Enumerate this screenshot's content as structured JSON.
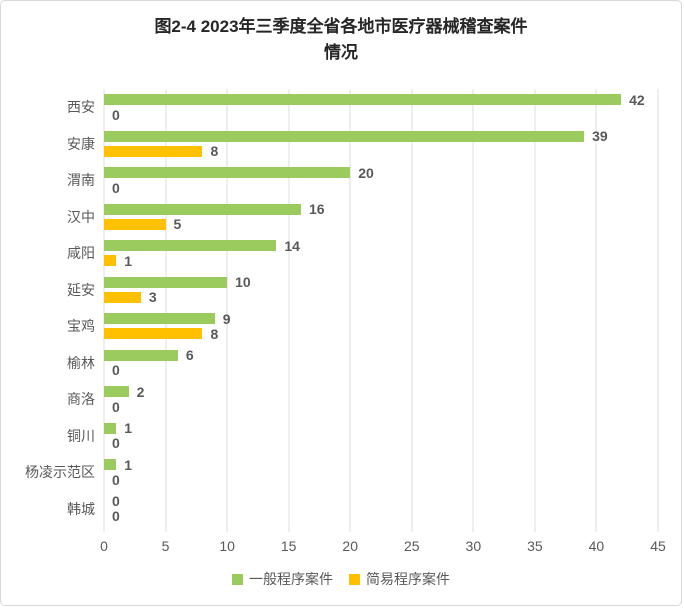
{
  "title_lines": [
    "图2-4 2023年三季度全省各地市医疗器械稽查案件",
    "情况"
  ],
  "chart_data": {
    "type": "bar",
    "orientation": "horizontal",
    "title": "图2-4 2023年三季度全省各地市医疗器械稽查案件情况",
    "categories": [
      "西安",
      "安康",
      "渭南",
      "汉中",
      "咸阳",
      "延安",
      "宝鸡",
      "榆林",
      "商洛",
      "铜川",
      "杨凌示范区",
      "韩城"
    ],
    "series": [
      {
        "name": "一般程序案件",
        "color": "#9bcb5e",
        "values": [
          42,
          39,
          20,
          16,
          14,
          10,
          9,
          6,
          2,
          1,
          1,
          0
        ]
      },
      {
        "name": "简易程序案件",
        "color": "#ffc000",
        "values": [
          0,
          8,
          0,
          5,
          1,
          3,
          8,
          0,
          0,
          0,
          0,
          0
        ]
      }
    ],
    "xlim": [
      0,
      45
    ],
    "xticks": [
      0,
      5,
      10,
      15,
      20,
      25,
      30,
      35,
      40,
      45
    ],
    "grid": "vertical-only",
    "legend_position": "bottom",
    "data_labels": true,
    "text_color": "#595959",
    "gridline_color": "#dcdcdc",
    "border_color": "#d9d9d9"
  }
}
